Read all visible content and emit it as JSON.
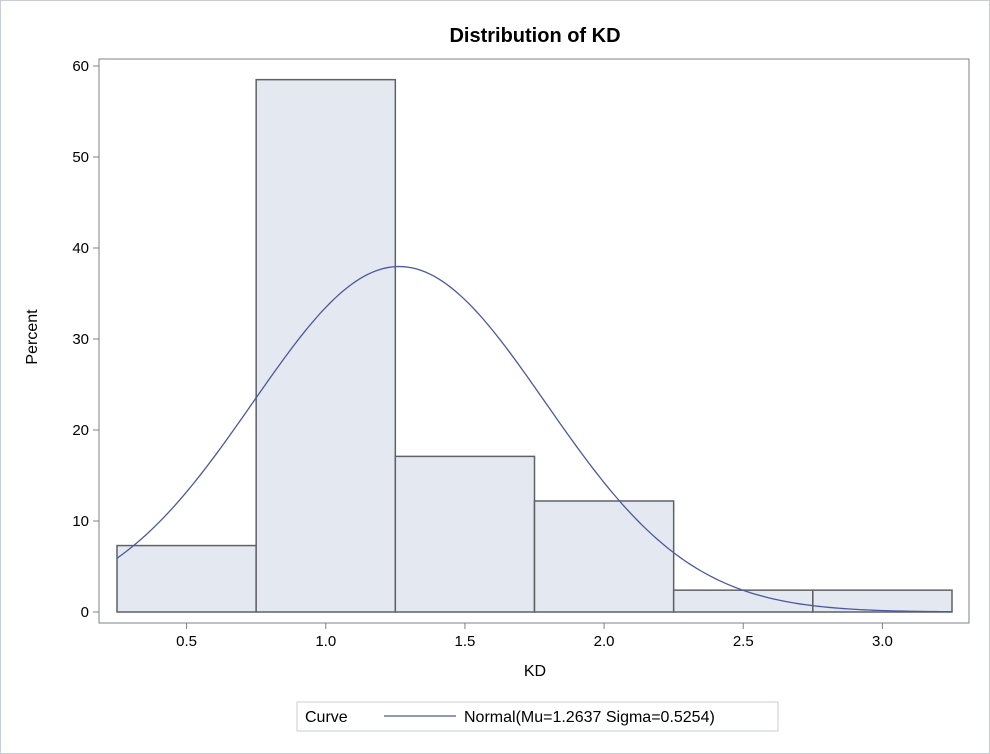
{
  "chart_data": {
    "type": "bar",
    "subtype": "histogram",
    "title": "Distribution of KD",
    "xlabel": "KD",
    "ylabel": "Percent",
    "xlim": [
      0.25,
      3.25
    ],
    "ylim": [
      0,
      60
    ],
    "x_ticks": [
      0.5,
      1.0,
      1.5,
      2.0,
      2.5,
      3.0
    ],
    "x_tick_labels": [
      "0.5",
      "1.0",
      "1.5",
      "2.0",
      "2.5",
      "3.0"
    ],
    "y_ticks": [
      0,
      10,
      20,
      30,
      40,
      50,
      60
    ],
    "y_tick_labels": [
      "0",
      "10",
      "20",
      "30",
      "40",
      "50",
      "60"
    ],
    "bins": [
      {
        "start": 0.25,
        "end": 0.75,
        "value": 7.3
      },
      {
        "start": 0.75,
        "end": 1.25,
        "value": 58.5
      },
      {
        "start": 1.25,
        "end": 1.75,
        "value": 17.1
      },
      {
        "start": 1.75,
        "end": 2.25,
        "value": 12.2
      },
      {
        "start": 2.25,
        "end": 2.75,
        "value": 2.4
      },
      {
        "start": 2.75,
        "end": 3.25,
        "value": 2.4
      }
    ],
    "curve": {
      "type": "normal",
      "mu": 1.2637,
      "sigma": 0.5254,
      "bin_width": 0.5,
      "label": "Normal(Mu=1.2637 Sigma=0.5254)"
    },
    "legend": {
      "title": "Curve",
      "placement": "bottom-center"
    },
    "grid": false,
    "colors": {
      "bar_fill": "#e4e8f1",
      "bar_stroke": "#5f6166",
      "curve": "#4a5aa0",
      "axis": "#7d8088",
      "frame": "#c8ccd4"
    }
  }
}
